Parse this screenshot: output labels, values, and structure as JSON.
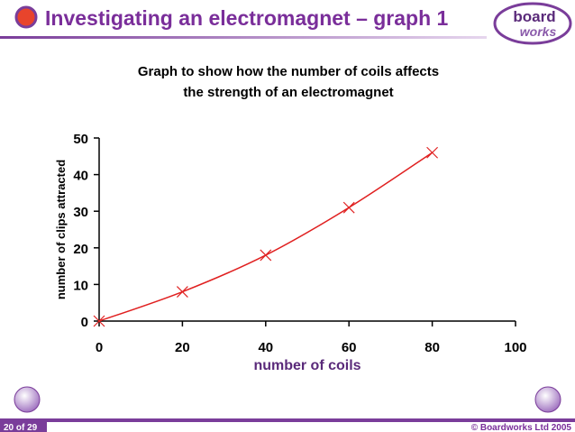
{
  "header": {
    "title": "Investigating an electromagnet – graph 1",
    "logo": [
      "board",
      "works"
    ]
  },
  "chart_data": {
    "type": "line",
    "title": [
      "Graph to show how the number of coils affects",
      "the strength of an electromagnet"
    ],
    "x_label": "number of coils",
    "y_label": "number of clips attracted",
    "x": [
      0,
      20,
      40,
      60,
      80
    ],
    "series": [
      {
        "name": "clips attracted",
        "color": "#e02020",
        "values": [
          0,
          8,
          18,
          31,
          46
        ]
      }
    ],
    "xlim": [
      0,
      100
    ],
    "xticks": [
      0,
      20,
      40,
      60,
      80,
      100
    ],
    "ylim": [
      0,
      50
    ],
    "yticks": [
      0,
      10,
      20,
      30,
      40,
      50
    ],
    "grid": false
  },
  "footer": {
    "page": "20 of 29",
    "copyright": "© Boardworks Ltd 2005"
  }
}
